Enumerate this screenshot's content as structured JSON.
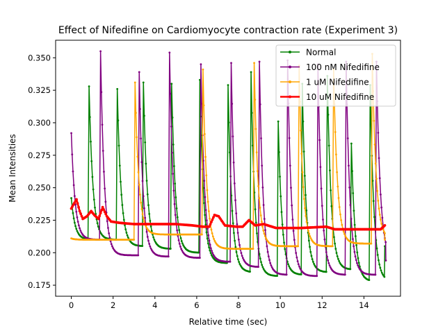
{
  "chart_data": {
    "type": "line",
    "title": "Effect of Nifedifine on Cardiomyocyte contraction rate (Experiment 3)",
    "xlabel": "Relative time (sec)",
    "ylabel": "Mean Intensities",
    "xlim": [
      -0.75,
      15.75
    ],
    "ylim": [
      0.1665,
      0.3635
    ],
    "xticks": [
      0,
      2,
      4,
      6,
      8,
      10,
      12,
      14
    ],
    "yticks": [
      0.175,
      0.2,
      0.225,
      0.25,
      0.275,
      0.3,
      0.325,
      0.35
    ],
    "xtick_labels": [
      "0",
      "2",
      "4",
      "6",
      "8",
      "10",
      "12",
      "14"
    ],
    "ytick_labels": [
      "0.175",
      "0.200",
      "0.225",
      "0.250",
      "0.275",
      "0.300",
      "0.325",
      "0.350"
    ],
    "grid": false,
    "legend_position": "top-right",
    "series": [
      {
        "name": "Normal",
        "color": "#008000",
        "baseline_start": 0.242,
        "peaks": [
          [
            0.85,
            0.328
          ],
          [
            2.2,
            0.326
          ],
          [
            3.45,
            0.331
          ],
          [
            4.8,
            0.33
          ],
          [
            6.15,
            0.333
          ],
          [
            7.5,
            0.329
          ],
          [
            8.6,
            0.339
          ],
          [
            9.9,
            0.301
          ],
          [
            11.05,
            0.33
          ],
          [
            12.25,
            0.336
          ],
          [
            13.4,
            0.284
          ],
          [
            14.3,
            0.329
          ]
        ],
        "troughs": [
          0.21,
          0.21,
          0.205,
          0.203,
          0.2,
          0.192,
          0.185,
          0.182,
          0.183,
          0.185,
          0.187,
          0.178,
          0.178
        ],
        "end": [
          15.0,
          0.205
        ]
      },
      {
        "name": "100 nM Nifedifine",
        "color": "#800080",
        "baseline_start": 0.292,
        "peaks": [
          [
            1.4,
            0.355
          ],
          [
            3.25,
            0.339
          ],
          [
            4.7,
            0.354
          ],
          [
            6.2,
            0.345
          ],
          [
            7.65,
            0.346
          ],
          [
            9.0,
            0.347
          ],
          [
            10.35,
            0.348
          ],
          [
            11.8,
            0.345
          ],
          [
            13.15,
            0.347
          ],
          [
            14.6,
            0.347
          ]
        ],
        "troughs": [
          0.21,
          0.198,
          0.197,
          0.196,
          0.193,
          0.189,
          0.183,
          0.182,
          0.183,
          0.183,
          0.195
        ],
        "end": [
          15.05,
          0.194
        ]
      },
      {
        "name": "1 uM Nifedifine",
        "color": "#FFA500",
        "baseline_start": 0.211,
        "peaks": [
          [
            3.05,
            0.331
          ],
          [
            6.3,
            0.341
          ],
          [
            8.75,
            0.346
          ],
          [
            10.9,
            0.344
          ],
          [
            12.55,
            0.341
          ],
          [
            14.4,
            0.353
          ]
        ],
        "troughs": [
          0.21,
          0.214,
          0.203,
          0.205,
          0.205,
          0.207,
          0.21
        ],
        "end": [
          15.0,
          0.21
        ]
      },
      {
        "name": "10 uM Nifedifine",
        "color": "#FF0000",
        "baseline_start": 0.234,
        "points": [
          [
            0.0,
            0.234
          ],
          [
            0.1,
            0.237
          ],
          [
            0.25,
            0.241
          ],
          [
            0.4,
            0.232
          ],
          [
            0.55,
            0.226
          ],
          [
            0.75,
            0.228
          ],
          [
            0.95,
            0.232
          ],
          [
            1.1,
            0.229
          ],
          [
            1.3,
            0.226
          ],
          [
            1.5,
            0.235
          ],
          [
            1.7,
            0.228
          ],
          [
            1.9,
            0.224
          ],
          [
            2.3,
            0.223
          ],
          [
            3.0,
            0.222
          ],
          [
            4.0,
            0.222
          ],
          [
            5.0,
            0.222
          ],
          [
            5.8,
            0.221
          ],
          [
            6.3,
            0.22
          ],
          [
            6.6,
            0.22
          ],
          [
            6.85,
            0.229
          ],
          [
            7.05,
            0.228
          ],
          [
            7.35,
            0.221
          ],
          [
            7.9,
            0.22
          ],
          [
            8.2,
            0.22
          ],
          [
            8.5,
            0.225
          ],
          [
            8.8,
            0.221
          ],
          [
            9.2,
            0.222
          ],
          [
            9.8,
            0.219
          ],
          [
            11.0,
            0.219
          ],
          [
            12.2,
            0.22
          ],
          [
            12.6,
            0.218
          ],
          [
            13.5,
            0.218
          ],
          [
            14.5,
            0.218
          ],
          [
            14.8,
            0.218
          ],
          [
            15.0,
            0.221
          ]
        ]
      }
    ]
  }
}
